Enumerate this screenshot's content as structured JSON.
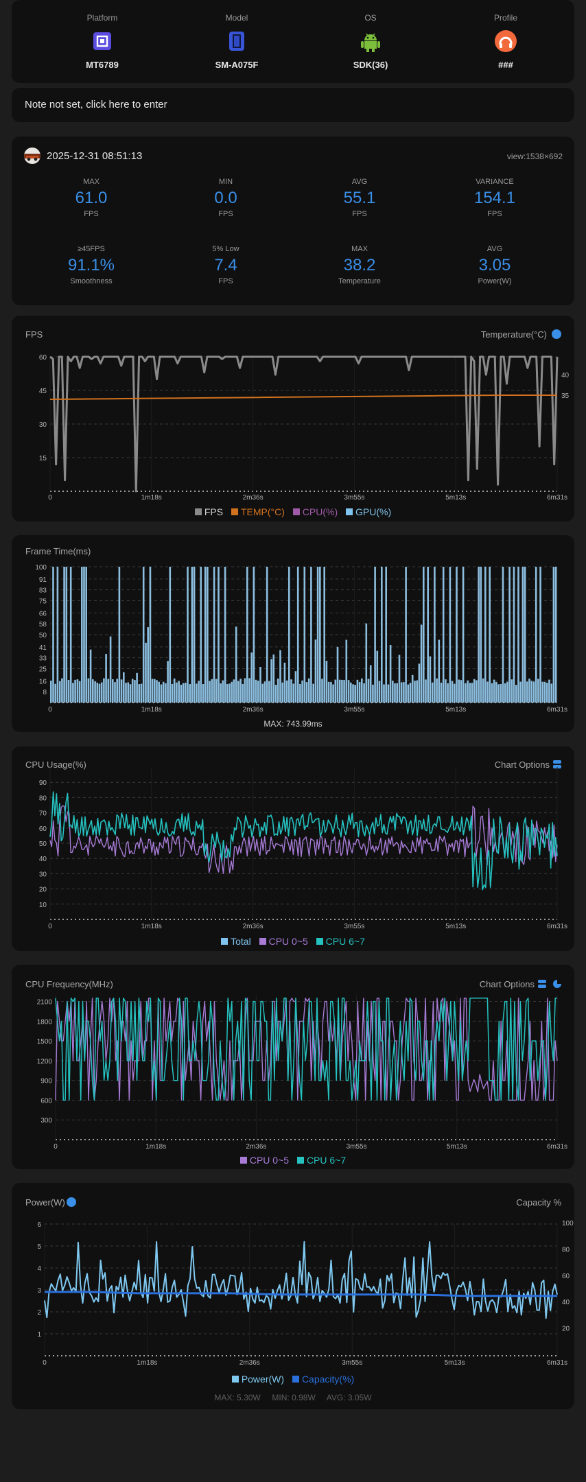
{
  "device": [
    {
      "header": "Platform",
      "value": "MT6789",
      "icon": "chip-icon"
    },
    {
      "header": "Model",
      "value": "SM-A075F",
      "icon": "phone-icon"
    },
    {
      "header": "OS",
      "value": "SDK(36)",
      "icon": "android-icon"
    },
    {
      "header": "Profile",
      "value": "###",
      "icon": "profile-icon"
    }
  ],
  "note": {
    "text": "Note not set, click here to enter"
  },
  "session": {
    "datetime": "2025-12-31 08:51:13",
    "view": "view:1538×692"
  },
  "stats": [
    {
      "label": "MAX",
      "value": "61.0",
      "unit": "FPS"
    },
    {
      "label": "MIN",
      "value": "0.0",
      "unit": "FPS"
    },
    {
      "label": "AVG",
      "value": "55.1",
      "unit": "FPS"
    },
    {
      "label": "VARIANCE",
      "value": "154.1",
      "unit": "FPS"
    },
    {
      "label": "≥45FPS",
      "value": "91.1%",
      "unit": "Smoothness"
    },
    {
      "label": "5% Low",
      "value": "7.4",
      "unit": "FPS"
    },
    {
      "label": "MAX",
      "value": "38.2",
      "unit": "Temperature"
    },
    {
      "label": "AVG",
      "value": "3.05",
      "unit": "Power(W)"
    }
  ],
  "colors": {
    "accent": "#3a8fe8",
    "fps": "#8a8a8a",
    "temp": "#d2721e",
    "cpu": "#a05aa8",
    "gpu": "#7fc4ee",
    "cpu_small": "#a77bd6",
    "cpu_big": "#25c2c0",
    "power": "#7fc8f0",
    "capacity": "#2a6fdc",
    "frametime": "#8cbedf"
  },
  "x_ticks": [
    "0",
    "1m18s",
    "2m36s",
    "3m55s",
    "5m13s",
    "6m31s"
  ],
  "fps_chart": {
    "title": "FPS",
    "right_title": "Temperature(°C)",
    "legend": [
      "FPS",
      "TEMP(°C)",
      "CPU(%)",
      "GPU(%)"
    ]
  },
  "frametime_chart": {
    "title": "Frame Time(ms)",
    "footer": "MAX: 743.99ms"
  },
  "cpu_usage_chart": {
    "title": "CPU Usage(%)",
    "options": "Chart Options",
    "legend": [
      "Total",
      "CPU 0~5",
      "CPU 6~7"
    ]
  },
  "cpu_freq_chart": {
    "title": "CPU Frequency(MHz)",
    "options": "Chart Options",
    "legend": [
      "CPU 0~5",
      "CPU 6~7"
    ]
  },
  "power_chart": {
    "title": "Power(W)",
    "right_title": "Capacity %",
    "legend": [
      "Power(W)",
      "Capacity(%)"
    ],
    "footer": {
      "max": "MAX: 5.30W",
      "min": "MIN: 0.98W",
      "avg": "AVG: 3.05W"
    }
  },
  "chart_data": [
    {
      "type": "line",
      "title": "FPS",
      "x_range_s": [
        0,
        391
      ],
      "ylim": [
        0,
        60
      ],
      "yticks": [
        60,
        45,
        30,
        15
      ],
      "y2ticks": [
        40,
        35
      ],
      "series": [
        {
          "name": "FPS",
          "values": [
            60,
            59,
            12,
            60,
            60,
            5,
            60,
            58,
            60,
            60,
            55,
            60,
            60,
            60,
            59,
            60,
            60,
            57,
            60,
            60,
            60,
            60,
            60,
            60,
            56,
            60,
            60,
            60,
            60,
            0,
            60,
            60,
            58,
            60,
            60,
            60,
            50,
            60,
            60,
            60,
            60,
            60,
            60,
            57,
            60,
            60,
            60,
            60,
            60,
            60,
            60,
            60,
            53,
            60,
            60,
            60,
            60,
            60,
            59,
            60,
            60,
            60,
            60,
            60,
            55,
            60,
            60,
            60,
            60,
            60,
            60,
            60,
            60,
            60,
            60,
            60,
            52,
            60,
            60,
            60,
            60,
            60,
            60,
            60,
            60,
            60,
            60,
            60,
            60,
            60,
            60,
            58,
            60,
            60,
            60,
            60,
            60,
            60,
            60,
            60,
            60,
            60,
            60,
            60,
            57,
            60,
            60,
            60,
            60,
            60,
            60,
            60,
            60,
            60,
            60,
            60,
            60,
            60,
            60,
            60,
            60,
            54,
            60,
            60,
            60,
            60,
            60,
            60,
            60,
            60,
            60,
            60,
            60,
            60,
            60,
            60,
            60,
            60,
            60,
            60,
            60,
            5,
            60,
            58,
            10,
            60,
            60,
            52,
            60,
            60,
            60,
            3,
            60,
            60,
            48,
            60,
            60,
            60,
            60,
            60,
            60,
            55,
            60,
            60,
            60,
            20,
            60,
            60,
            60,
            60,
            12,
            60
          ]
        },
        {
          "name": "TEMP(°C)",
          "values": [
            36.7,
            36.8,
            36.9,
            37.0,
            37.1,
            37.2,
            37.3,
            37.4,
            37.5,
            37.6,
            37.7,
            37.8,
            37.9,
            38.0,
            38.1,
            38.2,
            38.2,
            38.2
          ]
        }
      ]
    },
    {
      "type": "bar",
      "title": "Frame Time(ms)",
      "x_range_s": [
        0,
        391
      ],
      "ylim": [
        0,
        100
      ],
      "yticks": [
        100,
        91,
        83,
        75,
        66,
        58,
        50,
        41,
        33,
        25,
        16,
        8
      ],
      "max_ms": 743.99
    },
    {
      "type": "line",
      "title": "CPU Usage(%)",
      "x_range_s": [
        0,
        391
      ],
      "ylim": [
        0,
        100
      ],
      "yticks": [
        90,
        80,
        70,
        60,
        50,
        40,
        30,
        20,
        10
      ],
      "series": [
        {
          "name": "CPU 0~5",
          "avg": 48
        },
        {
          "name": "CPU 6~7",
          "avg": 62
        }
      ]
    },
    {
      "type": "line",
      "title": "CPU Frequency(MHz)",
      "x_range_s": [
        0,
        391
      ],
      "ylim": [
        0,
        2200
      ],
      "yticks": [
        2100,
        1800,
        1500,
        1200,
        900,
        600,
        300
      ],
      "series": [
        {
          "name": "CPU 0~5",
          "min": 500,
          "max": 2150
        },
        {
          "name": "CPU 6~7",
          "min": 500,
          "max": 2150
        }
      ]
    },
    {
      "type": "line",
      "title": "Power(W)",
      "x_range_s": [
        0,
        391
      ],
      "ylim": [
        0,
        6
      ],
      "yticks": [
        6,
        5,
        4,
        3,
        2,
        1
      ],
      "y2ticks": [
        100,
        80,
        60,
        40,
        20
      ],
      "series": [
        {
          "name": "Power(W)",
          "max": 5.3,
          "min": 0.98,
          "avg": 3.05
        },
        {
          "name": "Capacity(%)",
          "values": [
            62,
            62,
            61,
            61,
            61,
            60,
            60,
            60,
            60,
            59,
            59,
            59
          ]
        }
      ]
    }
  ]
}
